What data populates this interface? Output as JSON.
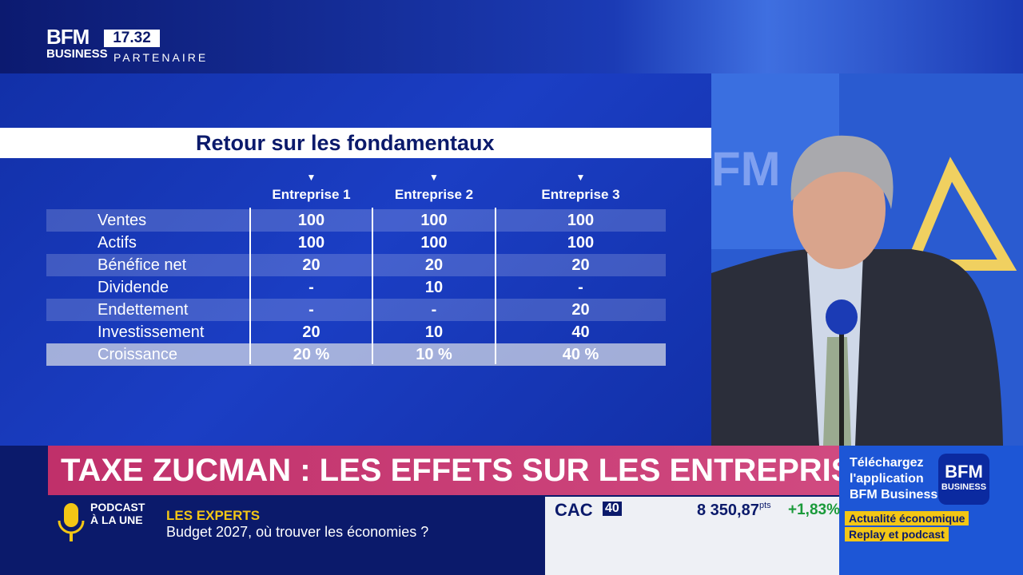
{
  "header": {
    "logo_top": "BFM",
    "logo_bottom": "BUSINESS",
    "time": "17.32",
    "partner": "PARTENAIRE"
  },
  "table": {
    "title": "Retour sur les fondamentaux",
    "columns": [
      "Entreprise 1",
      "Entreprise 2",
      "Entreprise 3"
    ],
    "rows": [
      [
        "Ventes",
        "100",
        "100",
        "100"
      ],
      [
        "Actifs",
        "100",
        "100",
        "100"
      ],
      [
        "Bénéfice net",
        "20",
        "20",
        "20"
      ],
      [
        "Dividende",
        "-",
        "10",
        "-"
      ],
      [
        "Endettement",
        "-",
        "-",
        "20"
      ],
      [
        "Investissement",
        "20",
        "10",
        "40"
      ],
      [
        "Croissance",
        "20 %",
        "10 %",
        "40 %"
      ]
    ]
  },
  "headline": "TAXE ZUCMAN : LES EFFETS SUR LES ENTREPRISES",
  "promo": {
    "lines": [
      "Téléchargez",
      "l'application",
      "BFM Business"
    ],
    "logo_top": "BFM",
    "logo_bottom": "BUSINESS",
    "tags": [
      "Actualité économique",
      "Replay et podcast"
    ]
  },
  "podcast": {
    "label": [
      "PODCAST",
      "À LA UNE"
    ],
    "show": "LES EXPERTS",
    "episode": "Budget 2027, où trouver les économies ?"
  },
  "market": {
    "index": "CAC",
    "index_num": "40",
    "value": "8 350,87",
    "unit": "pts",
    "change": "+1,83%"
  }
}
